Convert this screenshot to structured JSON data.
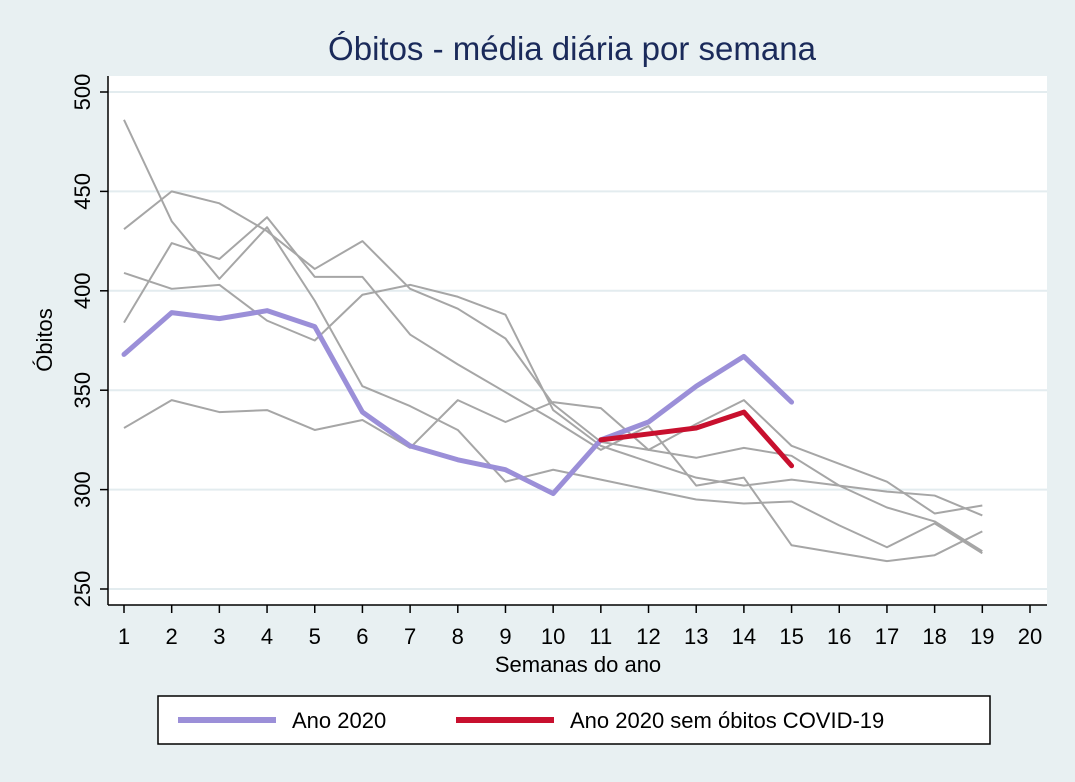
{
  "chart_data": {
    "type": "line",
    "title": "Óbitos - média diária por semana",
    "xlabel": "Semanas do ano",
    "ylabel": "Óbitos",
    "x": [
      1,
      2,
      3,
      4,
      5,
      6,
      7,
      8,
      9,
      10,
      11,
      12,
      13,
      14,
      15,
      16,
      17,
      18,
      19,
      20
    ],
    "xlim": [
      1,
      20
    ],
    "ylim": [
      250,
      500
    ],
    "yticks": [
      250,
      300,
      350,
      400,
      450,
      500
    ],
    "grid": true,
    "legend_position": "bottom",
    "background_lines": [
      {
        "values": [
          486,
          435,
          406,
          432,
          395,
          352,
          342,
          330,
          304,
          310,
          305,
          300,
          295,
          293,
          294,
          282,
          271,
          283,
          268
        ]
      },
      {
        "values": [
          431,
          450,
          444,
          430,
          411,
          425,
          401,
          391,
          376,
          343,
          324,
          320,
          316,
          321,
          317,
          302,
          291,
          284,
          269
        ]
      },
      {
        "values": [
          409,
          401,
          403,
          385,
          375,
          398,
          403,
          397,
          388,
          340,
          322,
          314,
          306,
          302,
          305,
          302,
          299,
          297,
          287
        ]
      },
      {
        "values": [
          384,
          424,
          416,
          437,
          407,
          407,
          378,
          363,
          349,
          335,
          320,
          332,
          302,
          306,
          272,
          268,
          264,
          267,
          279
        ]
      },
      {
        "values": [
          331,
          345,
          339,
          340,
          330,
          335,
          321,
          345,
          334,
          344,
          341,
          320,
          333,
          345,
          322,
          313,
          304,
          288,
          292
        ]
      }
    ],
    "series": [
      {
        "name": "Ano 2020",
        "color": "#9b8fd8",
        "x": [
          1,
          2,
          3,
          4,
          5,
          6,
          7,
          8,
          9,
          10,
          11,
          12,
          13,
          14,
          15
        ],
        "values": [
          368,
          389,
          386,
          390,
          382,
          339,
          322,
          315,
          310,
          298,
          325,
          334,
          352,
          367,
          344
        ]
      },
      {
        "name": "Ano 2020 sem óbitos COVID-19",
        "color": "#c8102e",
        "x": [
          11,
          12,
          13,
          14,
          15
        ],
        "values": [
          325,
          328,
          331,
          339,
          312
        ]
      }
    ],
    "background_color": "#a6a6a6"
  }
}
